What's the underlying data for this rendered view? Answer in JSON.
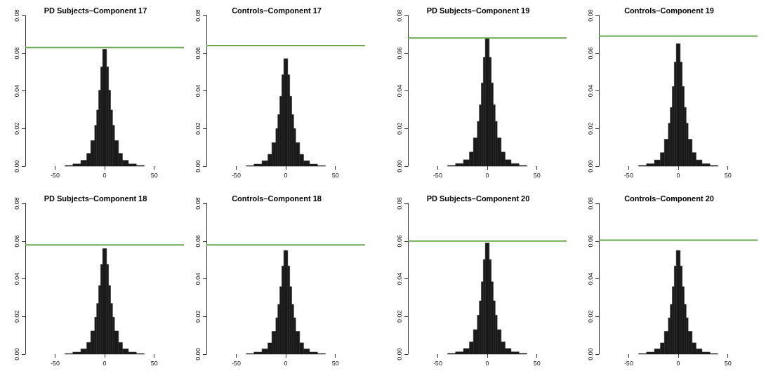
{
  "chart_data": [
    {
      "type": "histogram",
      "title": "PD Subjects–Component 17",
      "bins": [
        -40,
        -32,
        -24,
        -18,
        -14,
        -10,
        -8,
        -6,
        -4,
        -2,
        0,
        2,
        4,
        6,
        8,
        10,
        14,
        18,
        24,
        32,
        40
      ],
      "values": [
        0.0004,
        0.0012,
        0.0031,
        0.0068,
        0.0136,
        0.0217,
        0.0298,
        0.0403,
        0.0527,
        0.062,
        0.062,
        0.0527,
        0.0403,
        0.0298,
        0.0217,
        0.0136,
        0.0068,
        0.0031,
        0.0012,
        0.0004
      ],
      "color": "#1a1a1a",
      "xlim": [
        -80,
        80
      ],
      "xticks": [
        -50,
        0,
        50
      ],
      "ylim": [
        0,
        0.08
      ],
      "yticks": [
        {
          "value": 0,
          "label": "0.00"
        },
        {
          "value": 0.02,
          "label": "0.02"
        },
        {
          "value": 0.04,
          "label": "0.04"
        },
        {
          "value": 0.06,
          "label": "0.06"
        },
        {
          "value": 0.08,
          "label": "0.08"
        }
      ],
      "ref_lines": [
        {
          "axis": "y",
          "value": 0.063,
          "color": "#6aa84f"
        }
      ],
      "grid": false
    },
    {
      "type": "histogram",
      "title": "Controls–Component 17",
      "bins": [
        -40,
        -32,
        -24,
        -18,
        -14,
        -10,
        -8,
        -6,
        -4,
        -2,
        0,
        2,
        4,
        6,
        8,
        10,
        14,
        18,
        24,
        32,
        40
      ],
      "values": [
        0.0003,
        0.0011,
        0.0029,
        0.0063,
        0.0125,
        0.02,
        0.0274,
        0.0371,
        0.0485,
        0.057,
        0.057,
        0.0485,
        0.0371,
        0.0274,
        0.02,
        0.0125,
        0.0063,
        0.0029,
        0.0011,
        0.0003
      ],
      "color": "#1a1a1a",
      "xlim": [
        -80,
        80
      ],
      "xticks": [
        -50,
        0,
        50
      ],
      "ylim": [
        0,
        0.08
      ],
      "yticks": [
        {
          "value": 0,
          "label": "0.00"
        },
        {
          "value": 0.02,
          "label": "0.02"
        },
        {
          "value": 0.04,
          "label": "0.04"
        },
        {
          "value": 0.06,
          "label": "0.06"
        },
        {
          "value": 0.08,
          "label": "0.08"
        }
      ],
      "ref_lines": [
        {
          "axis": "y",
          "value": 0.064,
          "color": "#6aa84f"
        }
      ],
      "grid": false
    },
    {
      "type": "histogram",
      "title": "PD Subjects–Component 19",
      "bins": [
        -40,
        -32,
        -24,
        -18,
        -14,
        -10,
        -8,
        -6,
        -4,
        -2,
        0,
        2,
        4,
        6,
        8,
        10,
        14,
        18,
        24,
        32,
        40
      ],
      "values": [
        0.0004,
        0.0014,
        0.0034,
        0.0075,
        0.015,
        0.0238,
        0.0326,
        0.0442,
        0.0578,
        0.068,
        0.068,
        0.0578,
        0.0442,
        0.0326,
        0.0238,
        0.015,
        0.0075,
        0.0034,
        0.0014,
        0.0004
      ],
      "color": "#1a1a1a",
      "xlim": [
        -80,
        80
      ],
      "xticks": [
        -50,
        0,
        50
      ],
      "ylim": [
        0,
        0.08
      ],
      "yticks": [
        {
          "value": 0,
          "label": "0.00"
        },
        {
          "value": 0.02,
          "label": "0.02"
        },
        {
          "value": 0.04,
          "label": "0.04"
        },
        {
          "value": 0.06,
          "label": "0.06"
        },
        {
          "value": 0.08,
          "label": "0.08"
        }
      ],
      "ref_lines": [
        {
          "axis": "y",
          "value": 0.068,
          "color": "#6aa84f"
        }
      ],
      "grid": false
    },
    {
      "type": "histogram",
      "title": "Controls–Component 19",
      "bins": [
        -40,
        -32,
        -24,
        -18,
        -14,
        -10,
        -8,
        -6,
        -4,
        -2,
        0,
        2,
        4,
        6,
        8,
        10,
        14,
        18,
        24,
        32,
        40
      ],
      "values": [
        0.0004,
        0.0013,
        0.0033,
        0.0072,
        0.0143,
        0.0228,
        0.0312,
        0.0423,
        0.0553,
        0.065,
        0.065,
        0.0553,
        0.0423,
        0.0312,
        0.0228,
        0.0143,
        0.0072,
        0.0033,
        0.0013,
        0.0004
      ],
      "color": "#1a1a1a",
      "xlim": [
        -80,
        80
      ],
      "xticks": [
        -50,
        0,
        50
      ],
      "ylim": [
        0,
        0.08
      ],
      "yticks": [
        {
          "value": 0,
          "label": "0.00"
        },
        {
          "value": 0.02,
          "label": "0.02"
        },
        {
          "value": 0.04,
          "label": "0.04"
        },
        {
          "value": 0.06,
          "label": "0.06"
        },
        {
          "value": 0.08,
          "label": "0.08"
        }
      ],
      "ref_lines": [
        {
          "axis": "y",
          "value": 0.069,
          "color": "#6aa84f"
        }
      ],
      "grid": false
    },
    {
      "type": "histogram",
      "title": "PD Subjects–Component 18",
      "bins": [
        -40,
        -32,
        -24,
        -18,
        -14,
        -10,
        -8,
        -6,
        -4,
        -2,
        0,
        2,
        4,
        6,
        8,
        10,
        14,
        18,
        24,
        32,
        40
      ],
      "values": [
        0.0003,
        0.0011,
        0.0028,
        0.0062,
        0.0123,
        0.0196,
        0.0269,
        0.0364,
        0.0476,
        0.056,
        0.056,
        0.0476,
        0.0364,
        0.0269,
        0.0196,
        0.0123,
        0.0062,
        0.0028,
        0.0011,
        0.0003
      ],
      "color": "#1a1a1a",
      "xlim": [
        -80,
        80
      ],
      "xticks": [
        -50,
        0,
        50
      ],
      "ylim": [
        0,
        0.08
      ],
      "yticks": [
        {
          "value": 0,
          "label": "0.00"
        },
        {
          "value": 0.02,
          "label": "0.02"
        },
        {
          "value": 0.04,
          "label": "0.04"
        },
        {
          "value": 0.06,
          "label": "0.06"
        },
        {
          "value": 0.08,
          "label": "0.08"
        }
      ],
      "ref_lines": [
        {
          "axis": "y",
          "value": 0.058,
          "color": "#6aa84f"
        }
      ],
      "grid": false
    },
    {
      "type": "histogram",
      "title": "Controls–Component 18",
      "bins": [
        -40,
        -32,
        -24,
        -18,
        -14,
        -10,
        -8,
        -6,
        -4,
        -2,
        0,
        2,
        4,
        6,
        8,
        10,
        14,
        18,
        24,
        32,
        40
      ],
      "values": [
        0.0003,
        0.0011,
        0.0028,
        0.006,
        0.0121,
        0.0193,
        0.0264,
        0.0358,
        0.0468,
        0.055,
        0.055,
        0.0468,
        0.0358,
        0.0264,
        0.0193,
        0.0121,
        0.006,
        0.0028,
        0.0011,
        0.0003
      ],
      "color": "#1a1a1a",
      "xlim": [
        -80,
        80
      ],
      "xticks": [
        -50,
        0,
        50
      ],
      "ylim": [
        0,
        0.08
      ],
      "yticks": [
        {
          "value": 0,
          "label": "0.00"
        },
        {
          "value": 0.02,
          "label": "0.02"
        },
        {
          "value": 0.04,
          "label": "0.04"
        },
        {
          "value": 0.06,
          "label": "0.06"
        },
        {
          "value": 0.08,
          "label": "0.08"
        }
      ],
      "ref_lines": [
        {
          "axis": "y",
          "value": 0.058,
          "color": "#6aa84f"
        }
      ],
      "grid": false
    },
    {
      "type": "histogram",
      "title": "PD Subjects–Component 20",
      "bins": [
        -40,
        -32,
        -24,
        -18,
        -14,
        -10,
        -8,
        -6,
        -4,
        -2,
        0,
        2,
        4,
        6,
        8,
        10,
        14,
        18,
        24,
        32,
        40
      ],
      "values": [
        0.0004,
        0.0012,
        0.003,
        0.0065,
        0.013,
        0.0207,
        0.0283,
        0.0384,
        0.0502,
        0.059,
        0.059,
        0.0502,
        0.0384,
        0.0283,
        0.0207,
        0.013,
        0.0065,
        0.003,
        0.0012,
        0.0004
      ],
      "color": "#1a1a1a",
      "xlim": [
        -80,
        80
      ],
      "xticks": [
        -50,
        0,
        50
      ],
      "ylim": [
        0,
        0.08
      ],
      "yticks": [
        {
          "value": 0,
          "label": "0.00"
        },
        {
          "value": 0.02,
          "label": "0.02"
        },
        {
          "value": 0.04,
          "label": "0.04"
        },
        {
          "value": 0.06,
          "label": "0.06"
        },
        {
          "value": 0.08,
          "label": "0.08"
        }
      ],
      "ref_lines": [
        {
          "axis": "y",
          "value": 0.06,
          "color": "#6aa84f"
        }
      ],
      "grid": false
    },
    {
      "type": "histogram",
      "title": "Controls–Component 20",
      "bins": [
        -40,
        -32,
        -24,
        -18,
        -14,
        -10,
        -8,
        -6,
        -4,
        -2,
        0,
        2,
        4,
        6,
        8,
        10,
        14,
        18,
        24,
        32,
        40
      ],
      "values": [
        0.0003,
        0.0011,
        0.0028,
        0.006,
        0.0121,
        0.0193,
        0.0264,
        0.0358,
        0.0468,
        0.055,
        0.055,
        0.0468,
        0.0358,
        0.0264,
        0.0193,
        0.0121,
        0.006,
        0.0028,
        0.0011,
        0.0003
      ],
      "color": "#1a1a1a",
      "xlim": [
        -80,
        80
      ],
      "xticks": [
        -50,
        0,
        50
      ],
      "ylim": [
        0,
        0.08
      ],
      "yticks": [
        {
          "value": 0,
          "label": "0.00"
        },
        {
          "value": 0.02,
          "label": "0.02"
        },
        {
          "value": 0.04,
          "label": "0.04"
        },
        {
          "value": 0.06,
          "label": "0.06"
        },
        {
          "value": 0.08,
          "label": "0.08"
        }
      ],
      "ref_lines": [
        {
          "axis": "y",
          "value": 0.0605,
          "color": "#6aa84f"
        }
      ],
      "grid": false
    }
  ]
}
